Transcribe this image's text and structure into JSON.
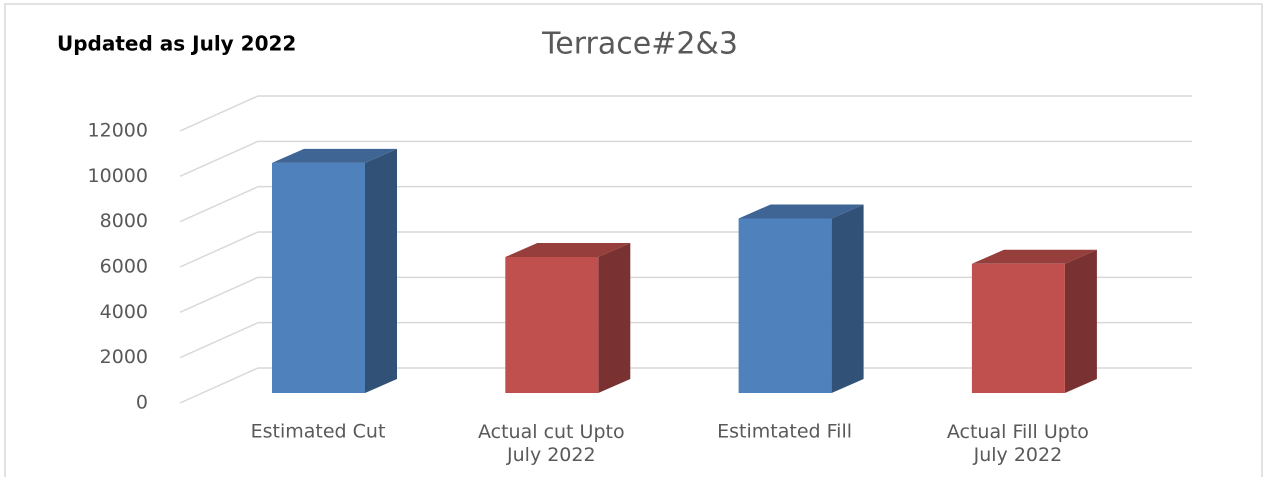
{
  "chart_data": {
    "type": "bar3d",
    "title": "Terrace#2&3",
    "subtitle": "Updated as July 2022",
    "categories": [
      "Estimated Cut",
      "Actual cut Upto\nJuly  2022",
      "Estimtated Fill",
      "Actual Fill Upto\nJuly  2022"
    ],
    "values": [
      10150,
      6000,
      7700,
      5700
    ],
    "colors": [
      "#4f81bd",
      "#c0504d",
      "#4f81bd",
      "#c0504d"
    ],
    "ylim": [
      0,
      12000
    ],
    "yticks": [
      0,
      2000,
      4000,
      6000,
      8000,
      10000,
      12000
    ],
    "grid": true
  }
}
